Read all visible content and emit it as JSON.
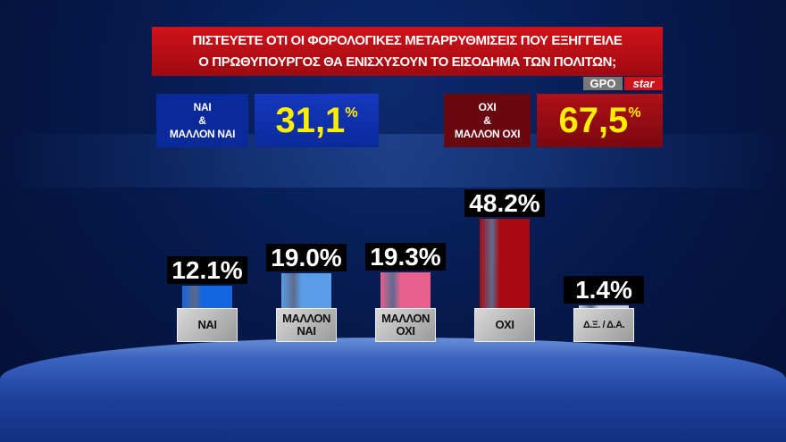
{
  "title_lines": [
    "ΠΙΣΤΕΥΕΤΕ ΟΤΙ ΟΙ ΦΟΡΟΛΟΓΙΚΕΣ ΜΕΤΑΡΡΥΘΜΙΣΕΙΣ ΠΟΥ ΕΞΗΓΓΕΙΛΕ",
    "Ο ΠΡΩΘΥΠΟΥΡΓΟΣ ΘΑ ΕΝΙΣΧΥΣΟΥΝ ΤΟ ΕΙΣΟΔΗΜΑ ΤΩΝ ΠΟΛΙΤΩΝ;"
  ],
  "source": {
    "pollster": "GPO",
    "channel": "star"
  },
  "summary": {
    "yes": {
      "label_lines": [
        "ΝΑΙ",
        "&",
        "ΜΑΛΛΟΝ ΝΑΙ"
      ],
      "value": "31,1",
      "unit": "%",
      "color": "#0a2a9a"
    },
    "no": {
      "label_lines": [
        "ΟΧΙ",
        "&",
        "ΜΑΛΛΟΝ ΟΧΙ"
      ],
      "value": "67,5",
      "unit": "%",
      "color": "#8a0a14"
    }
  },
  "chart_data": {
    "type": "bar",
    "categories": [
      "ΝΑΙ",
      "ΜΑΛΛΟΝ ΝΑΙ",
      "ΜΑΛΛΟΝ ΟΧΙ",
      "ΟΧΙ",
      "Δ.Ξ. / Δ.Α."
    ],
    "values": [
      12.1,
      19.0,
      19.3,
      48.2,
      1.4
    ],
    "value_labels": [
      "12.1%",
      "19.0%",
      "19.3%",
      "48.2%",
      "1.4%"
    ],
    "colors": [
      "#1466e0",
      "#5a9ee8",
      "#e8608e",
      "#a80a12",
      "#c8d0e0"
    ],
    "title": "",
    "xlabel": "",
    "ylabel": "",
    "ylim": [
      0,
      50
    ],
    "grid": false
  }
}
